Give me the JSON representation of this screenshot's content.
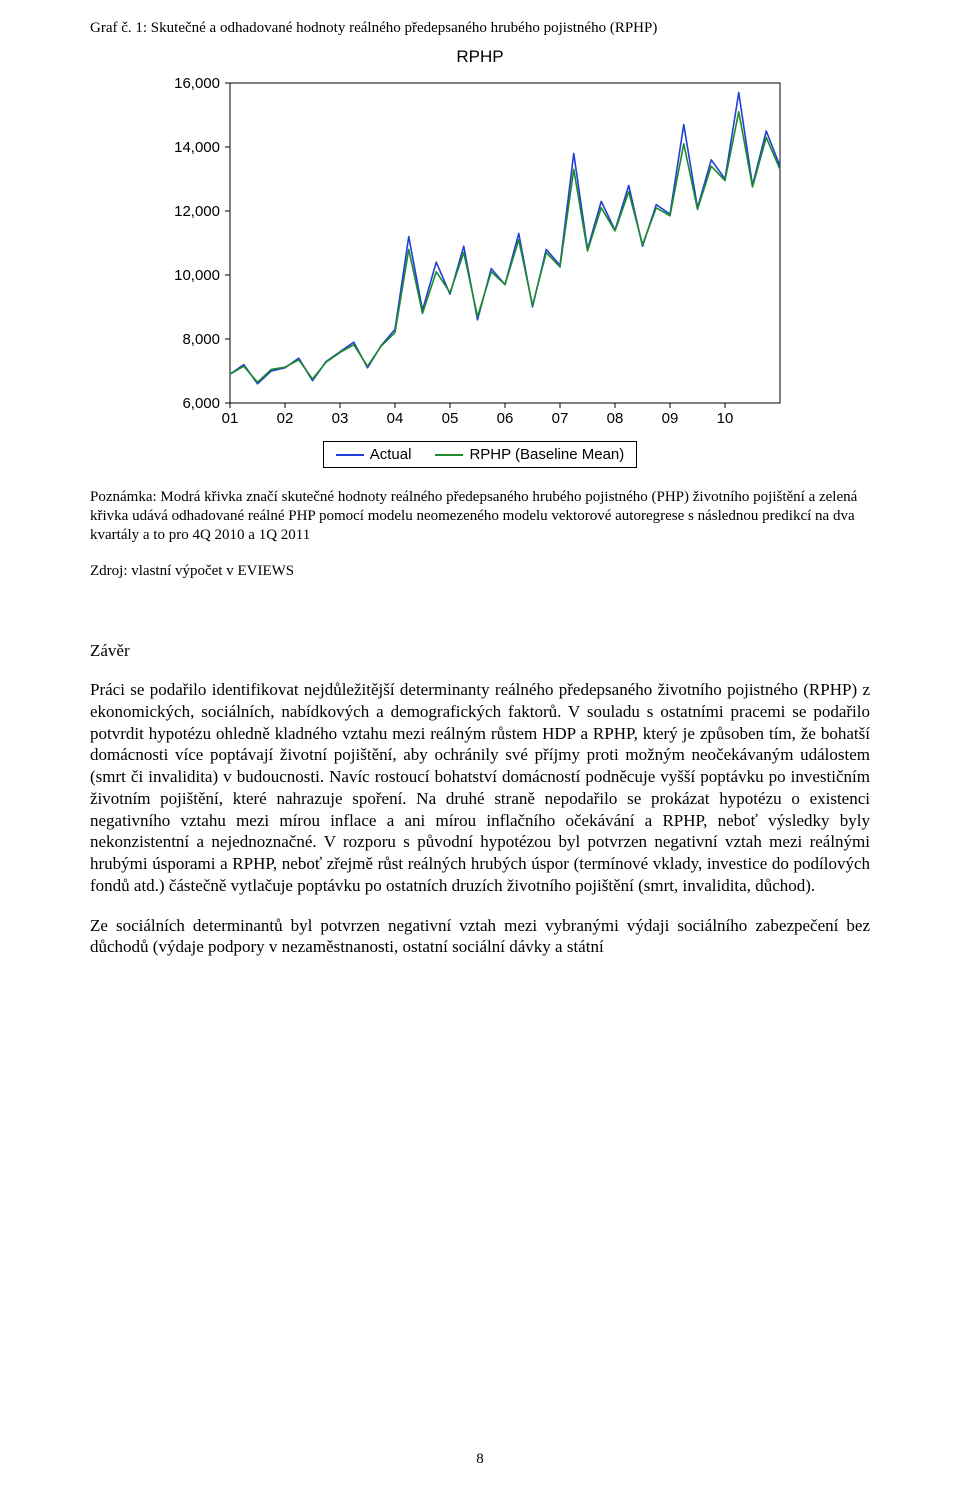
{
  "caption": "Graf č. 1: Skutečné a odhadované hodnoty reálného předepsaného hrubého pojistného (RPHP)",
  "chart": {
    "type": "line",
    "title": "RPHP",
    "title_fontsize": 17,
    "font_family": "Arial",
    "background_color": "#ffffff",
    "axis_color": "#000000",
    "tick_fontsize": 15,
    "ylim": [
      6000,
      16000
    ],
    "ytick_step": 2000,
    "yticks": [
      6000,
      8000,
      10000,
      12000,
      14000,
      16000
    ],
    "ytick_labels": [
      "6,000",
      "8,000",
      "10,000",
      "12,000",
      "14,000",
      "16,000"
    ],
    "xtick_labels": [
      "01",
      "02",
      "03",
      "04",
      "05",
      "06",
      "07",
      "08",
      "09",
      "10"
    ],
    "n_points": 41,
    "series": [
      {
        "name": "Actual",
        "color": "#1f3fd6",
        "line_width": 1.6,
        "values": [
          6900,
          7200,
          6600,
          7000,
          7100,
          7400,
          6700,
          7300,
          7600,
          7900,
          7100,
          7800,
          8300,
          11200,
          8900,
          10400,
          9400,
          10900,
          8600,
          10200,
          9700,
          11300,
          9000,
          10800,
          10300,
          13800,
          10800,
          12300,
          11400,
          12800,
          10900,
          12200,
          11900,
          14700,
          12100,
          13600,
          13000,
          15700,
          12800,
          14500,
          13400
        ]
      },
      {
        "name": "RPHP (Baseline Mean)",
        "color": "#1d8a2b",
        "line_width": 1.6,
        "values": [
          6900,
          7150,
          6650,
          7050,
          7120,
          7350,
          6750,
          7280,
          7580,
          7820,
          7150,
          7780,
          8200,
          10800,
          8800,
          10100,
          9450,
          10700,
          8700,
          10100,
          9700,
          11100,
          9050,
          10700,
          10250,
          13300,
          10750,
          12100,
          11380,
          12600,
          10950,
          12100,
          11850,
          14100,
          12050,
          13400,
          12950,
          15100,
          12750,
          14300,
          13300
        ]
      }
    ],
    "legend": {
      "border_color": "#000000",
      "items": [
        {
          "label": "Actual",
          "color": "#1f3fd6"
        },
        {
          "label": "RPHP (Baseline Mean)",
          "color": "#1d8a2b"
        }
      ]
    }
  },
  "note_text": "Poznámka: Modrá křivka značí skutečné hodnoty reálného předepsaného hrubého pojistného (PHP) životního pojištění a zelená křivka udává odhadované reálné PHP pomocí modelu neomezeného modelu vektorové autoregrese s následnou predikcí na dva kvartály a to pro 4Q 2010 a 1Q 2011",
  "source_text": "Zdroj: vlastní výpočet v EVIEWS",
  "section_title": "Závěr",
  "paragraph1": "Práci se podařilo identifikovat nejdůležitější determinanty reálného předepsaného životního pojistného (RPHP) z ekonomických, sociálních, nabídkových a demografických faktorů. V souladu s ostatními pracemi se podařilo potvrdit hypotézu ohledně kladného vztahu mezi reálným růstem HDP a RPHP, který je způsoben tím, že bohatší domácnosti více poptávají životní pojištění, aby ochránily své příjmy proti možným neočekávaným událostem (smrt či invalidita) v budoucnosti. Navíc rostoucí bohatství domácností podněcuje vyšší poptávku po investičním životním pojištění, které nahrazuje spoření. Na druhé straně nepodařilo se prokázat hypotézu o existenci negativního vztahu mezi mírou inflace a ani mírou inflačního očekávání a RPHP, neboť výsledky byly nekonzistentní a nejednoznačné. V rozporu s původní hypotézou byl potvrzen negativní vztah mezi reálnými hrubými úsporami a RPHP, neboť zřejmě růst reálných hrubých úspor (termínové vklady, investice do podílových fondů atd.) částečně vytlačuje poptávku po ostatních druzích životního pojištění (smrt, invalidita, důchod).",
  "paragraph2": "Ze sociálních determinantů byl potvrzen negativní vztah mezi vybranými výdaji sociálního zabezpečení bez důchodů (výdaje podpory v nezaměstnanosti, ostatní sociální dávky a státní",
  "page_number": "8"
}
